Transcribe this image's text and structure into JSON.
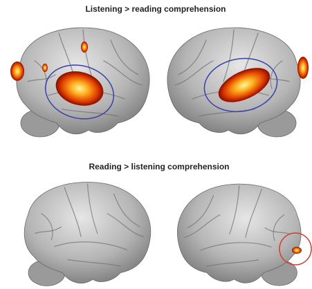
{
  "panels": [
    {
      "title": "Listening > reading comprehension"
    },
    {
      "title": "Reading > listening comprehension"
    }
  ]
}
